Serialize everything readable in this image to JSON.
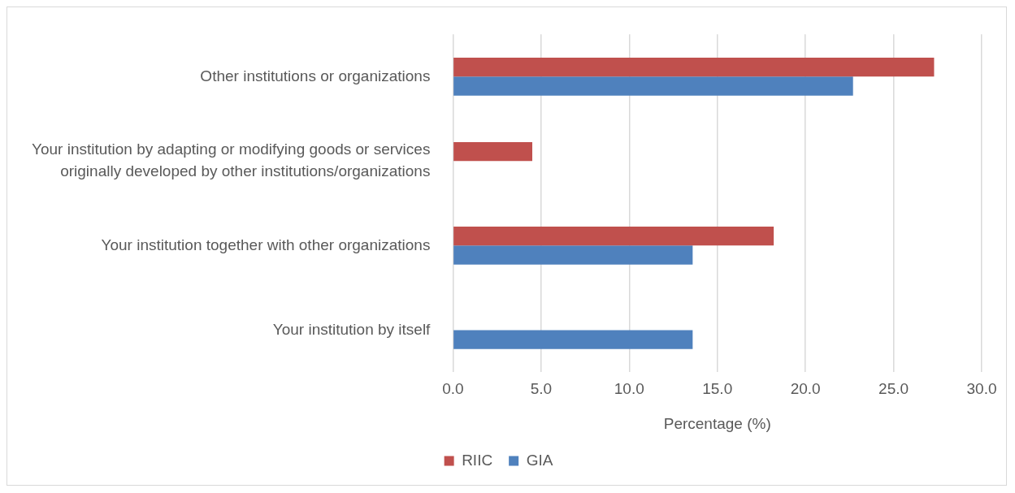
{
  "chart_data": {
    "type": "bar",
    "orientation": "horizontal",
    "xlabel": "Percentage (%)",
    "categories": [
      "Other institutions or organizations",
      "Your institution by adapting or modifying goods or services originally developed by other institutions/organizations",
      "Your institution together with other organizations",
      "Your institution by itself"
    ],
    "series": [
      {
        "name": "RIIC",
        "color": "#c0504d",
        "values": [
          27.3,
          4.5,
          18.2,
          null
        ]
      },
      {
        "name": "GIA",
        "color": "#4f81bd",
        "values": [
          22.7,
          null,
          13.6,
          13.6
        ]
      }
    ],
    "xlim": [
      0,
      30
    ],
    "xticks": [
      {
        "value": 0,
        "label": "0.0"
      },
      {
        "value": 5,
        "label": "5.0"
      },
      {
        "value": 10,
        "label": "10.0"
      },
      {
        "value": 15,
        "label": "15.0"
      },
      {
        "value": 20,
        "label": "20.0"
      },
      {
        "value": 25,
        "label": "25.0"
      },
      {
        "value": 30,
        "label": "30.0"
      }
    ],
    "grid": "x",
    "legend": "bottom"
  }
}
